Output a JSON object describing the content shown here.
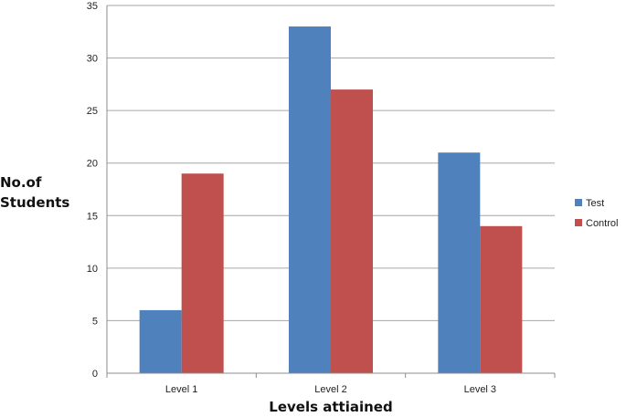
{
  "chart_data": {
    "type": "bar",
    "categories": [
      "Level 1",
      "Level 2",
      "Level 3"
    ],
    "series": [
      {
        "name": "Test",
        "values": [
          6,
          33,
          21
        ],
        "color": "#4f81bd"
      },
      {
        "name": "Control",
        "values": [
          19,
          27,
          14
        ],
        "color": "#c0504d"
      }
    ],
    "xlabel": "Levels attiained",
    "ylabel_lines": [
      "No.of",
      "Students"
    ],
    "ylim": [
      0,
      35
    ],
    "yticks": [
      0,
      5,
      10,
      15,
      20,
      25,
      30,
      35
    ],
    "grid": true,
    "legend_position": "right"
  }
}
